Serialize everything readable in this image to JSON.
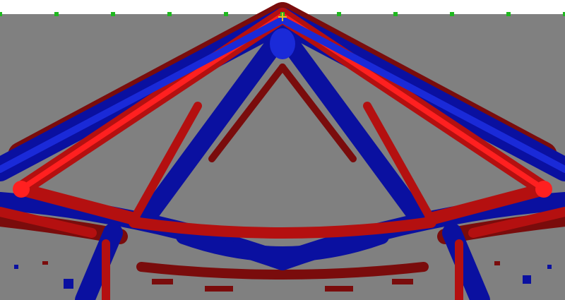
{
  "colors": {
    "background": "#808080",
    "top_strip": "#ffffff",
    "blue_band": "#0a10a0",
    "blue_core": "#1a2ad8",
    "red_band": "#b41010",
    "red_core": "#ff2020",
    "dark_red_halo": "#7a0c0c",
    "marker": "#1fb81f",
    "load_point": "#e8c020"
  },
  "markers": {
    "count": 11
  },
  "icons": {
    "boundary_marker": "square-marker-icon",
    "load_point": "crosshair-icon"
  }
}
